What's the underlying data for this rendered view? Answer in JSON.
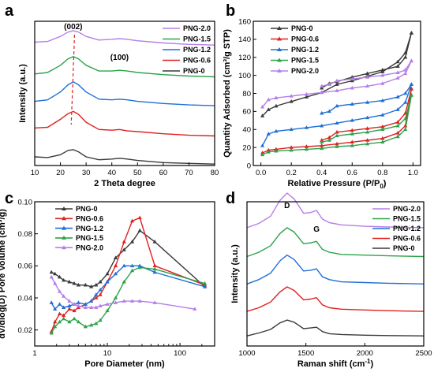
{
  "chart_data": [
    {
      "panel": "a",
      "type": "line",
      "xlabel": "2 Theta degree",
      "ylabel": "Intensity (a.u.)",
      "xlim": [
        10,
        80
      ],
      "xticks": [
        10,
        20,
        30,
        40,
        50,
        60,
        70,
        80
      ],
      "ylim": [
        0,
        10
      ],
      "yticks_shown": false,
      "legend": "top-right",
      "annotations": [
        "(002)",
        "(100)"
      ],
      "series": [
        {
          "name": "PNG-2.0",
          "color": "#b57ee8",
          "offset": 8.2,
          "x": [
            10,
            15,
            20,
            23,
            25,
            27,
            30,
            35,
            40,
            43,
            46,
            50,
            60,
            70,
            80
          ],
          "y": [
            0.35,
            0.4,
            0.75,
            1.05,
            1.15,
            1.05,
            0.75,
            0.5,
            0.55,
            0.6,
            0.55,
            0.45,
            0.3,
            0.2,
            0.15
          ]
        },
        {
          "name": "PNG-1.5",
          "color": "#2ca24a",
          "offset": 6.0,
          "x": [
            10,
            15,
            20,
            23,
            25,
            27,
            30,
            35,
            40,
            43,
            46,
            50,
            60,
            70,
            80
          ],
          "y": [
            0.35,
            0.45,
            0.95,
            1.4,
            1.55,
            1.4,
            0.95,
            0.55,
            0.55,
            0.6,
            0.55,
            0.45,
            0.3,
            0.2,
            0.15
          ]
        },
        {
          "name": "PNG-1.2",
          "color": "#1f6fd6",
          "offset": 4.0,
          "x": [
            10,
            15,
            20,
            23,
            25,
            27,
            30,
            35,
            40,
            43,
            46,
            50,
            60,
            70,
            80
          ],
          "y": [
            0.45,
            0.55,
            1.1,
            1.6,
            1.8,
            1.6,
            1.1,
            0.6,
            0.55,
            0.6,
            0.55,
            0.45,
            0.3,
            0.2,
            0.15
          ]
        },
        {
          "name": "PNG-0.6",
          "color": "#e02020",
          "offset": 1.9,
          "x": [
            10,
            15,
            20,
            23,
            25,
            27,
            30,
            35,
            40,
            43,
            46,
            50,
            60,
            70,
            80
          ],
          "y": [
            0.7,
            0.75,
            1.3,
            1.7,
            1.85,
            1.65,
            1.1,
            0.6,
            0.55,
            0.6,
            0.5,
            0.45,
            0.3,
            0.2,
            0.15
          ]
        },
        {
          "name": "PNG-0",
          "color": "#3a3a3a",
          "offset": 0.0,
          "x": [
            10,
            15,
            20,
            23,
            25,
            27,
            30,
            35,
            40,
            43,
            46,
            50,
            60,
            70,
            80
          ],
          "y": [
            0.6,
            0.55,
            0.75,
            1.05,
            1.1,
            0.95,
            0.6,
            0.4,
            0.45,
            0.5,
            0.45,
            0.35,
            0.2,
            0.15,
            0.1
          ]
        }
      ]
    },
    {
      "panel": "b",
      "type": "line",
      "xlabel": "Relative Pressure (P/P",
      "xlabel_sub": "0",
      "xlabel_end": ")",
      "ylabel": "Quantity Adsorbed (cm³/g STP)",
      "xlim": [
        -0.05,
        1.05
      ],
      "xticks": [
        0.0,
        0.2,
        0.4,
        0.6,
        0.8,
        1.0
      ],
      "ylim": [
        0,
        160
      ],
      "yticks": [
        0,
        20,
        40,
        60,
        80,
        100,
        120,
        140,
        160
      ],
      "legend": "top-left",
      "series": [
        {
          "name": "PNG-0",
          "color": "#3a3a3a",
          "adsorption_x": [
            0.01,
            0.05,
            0.1,
            0.2,
            0.3,
            0.4,
            0.5,
            0.6,
            0.7,
            0.8,
            0.9,
            0.95,
            0.99
          ],
          "adsorption_y": [
            55,
            62,
            66,
            71,
            76,
            81,
            90,
            94,
            99,
            104,
            115,
            125,
            147
          ],
          "desorption_x": [
            0.99,
            0.95,
            0.9,
            0.8,
            0.7,
            0.6,
            0.5,
            0.45,
            0.4
          ],
          "desorption_y": [
            147,
            120,
            110,
            106,
            102,
            98,
            93,
            91,
            86
          ]
        },
        {
          "name": "PNG-0.6",
          "color": "#e02020",
          "adsorption_x": [
            0.01,
            0.05,
            0.1,
            0.2,
            0.3,
            0.4,
            0.5,
            0.6,
            0.7,
            0.8,
            0.9,
            0.95,
            0.99
          ],
          "adsorption_y": [
            14,
            17,
            18,
            20,
            21,
            22,
            24,
            26,
            28,
            30,
            36,
            44,
            85
          ],
          "desorption_x": [
            0.99,
            0.95,
            0.9,
            0.8,
            0.7,
            0.6,
            0.5,
            0.45,
            0.4
          ],
          "desorption_y": [
            85,
            58,
            48,
            43,
            41,
            39,
            37,
            31,
            28
          ]
        },
        {
          "name": "PNG-1.2",
          "color": "#1f6fd6",
          "adsorption_x": [
            0.01,
            0.05,
            0.1,
            0.2,
            0.3,
            0.4,
            0.5,
            0.6,
            0.7,
            0.8,
            0.9,
            0.95,
            0.99
          ],
          "adsorption_y": [
            22,
            35,
            38,
            40,
            42,
            44,
            47,
            50,
            53,
            56,
            62,
            70,
            90
          ],
          "desorption_x": [
            0.99,
            0.95,
            0.9,
            0.8,
            0.7,
            0.6,
            0.5,
            0.45,
            0.4
          ],
          "desorption_y": [
            90,
            80,
            76,
            72,
            70,
            68,
            66,
            60,
            58
          ]
        },
        {
          "name": "PNG-1.5",
          "color": "#2ca24a",
          "adsorption_x": [
            0.01,
            0.05,
            0.1,
            0.2,
            0.3,
            0.4,
            0.5,
            0.6,
            0.7,
            0.8,
            0.9,
            0.95,
            0.99
          ],
          "adsorption_y": [
            12,
            15,
            16,
            17,
            18,
            19,
            21,
            22,
            24,
            26,
            32,
            40,
            78
          ],
          "desorption_x": [
            0.99,
            0.95,
            0.9,
            0.8,
            0.7,
            0.6,
            0.5,
            0.45,
            0.4
          ],
          "desorption_y": [
            78,
            52,
            44,
            40,
            37,
            35,
            33,
            28,
            26
          ]
        },
        {
          "name": "PNG-2.0",
          "color": "#b57ee8",
          "adsorption_x": [
            0.01,
            0.05,
            0.1,
            0.2,
            0.3,
            0.4,
            0.5,
            0.6,
            0.7,
            0.8,
            0.9,
            0.95,
            0.99
          ],
          "adsorption_y": [
            65,
            73,
            75,
            77,
            79,
            81,
            83,
            86,
            88,
            91,
            97,
            102,
            116
          ],
          "desorption_x": [
            0.99,
            0.95,
            0.9,
            0.8,
            0.7,
            0.6,
            0.5,
            0.45,
            0.4
          ],
          "desorption_y": [
            116,
            106,
            103,
            100,
            98,
            96,
            94,
            90,
            88
          ]
        }
      ]
    },
    {
      "panel": "c",
      "type": "line",
      "xlabel": "Pore Diameter (nm)",
      "ylabel": "dV/dlog(D) Pore Volume (cm³/g)",
      "xscale": "log",
      "xlim": [
        1,
        300
      ],
      "xticks": [
        1,
        10,
        100
      ],
      "ylim": [
        0.01,
        0.1
      ],
      "yticks": [
        0.02,
        0.04,
        0.06,
        0.08,
        0.1
      ],
      "legend": "top-left",
      "series": [
        {
          "name": "PNG-0",
          "color": "#3a3a3a",
          "x": [
            1.7,
            1.9,
            2.2,
            2.5,
            3,
            3.5,
            4,
            5,
            6,
            7,
            8,
            10,
            13,
            17,
            22,
            28,
            45,
            220
          ],
          "y": [
            0.056,
            0.055,
            0.053,
            0.051,
            0.05,
            0.049,
            0.048,
            0.048,
            0.047,
            0.048,
            0.05,
            0.055,
            0.065,
            0.07,
            0.075,
            0.082,
            0.075,
            0.047
          ]
        },
        {
          "name": "PNG-0.6",
          "color": "#e02020",
          "x": [
            1.7,
            1.9,
            2.2,
            2.5,
            3,
            3.5,
            4,
            5,
            6,
            7,
            8,
            10,
            13,
            17,
            22,
            28,
            45,
            220
          ],
          "y": [
            0.019,
            0.025,
            0.03,
            0.029,
            0.033,
            0.032,
            0.034,
            0.036,
            0.038,
            0.04,
            0.042,
            0.05,
            0.06,
            0.075,
            0.088,
            0.09,
            0.06,
            0.048
          ]
        },
        {
          "name": "PNG-1.2",
          "color": "#1f6fd6",
          "x": [
            1.7,
            1.9,
            2.2,
            2.5,
            3,
            3.5,
            4,
            5,
            6,
            7,
            8,
            10,
            13,
            17,
            22,
            28,
            45,
            220
          ],
          "y": [
            0.037,
            0.033,
            0.036,
            0.034,
            0.035,
            0.036,
            0.037,
            0.036,
            0.038,
            0.042,
            0.045,
            0.05,
            0.055,
            0.06,
            0.06,
            0.06,
            0.056,
            0.047
          ]
        },
        {
          "name": "PNG-1.5",
          "color": "#2ca24a",
          "x": [
            1.7,
            1.9,
            2.2,
            2.5,
            3,
            3.5,
            4,
            5,
            6,
            7,
            8,
            10,
            13,
            17,
            22,
            28,
            45,
            220
          ],
          "y": [
            0.018,
            0.022,
            0.025,
            0.027,
            0.025,
            0.027,
            0.025,
            0.022,
            0.023,
            0.024,
            0.026,
            0.032,
            0.04,
            0.05,
            0.057,
            0.059,
            0.058,
            0.049
          ]
        },
        {
          "name": "PNG-2.0",
          "color": "#b57ee8",
          "x": [
            1.7,
            1.9,
            2.2,
            2.5,
            3,
            3.5,
            4,
            5,
            6,
            7,
            8,
            10,
            13,
            17,
            22,
            28,
            45,
            160
          ],
          "y": [
            0.053,
            0.049,
            0.044,
            0.041,
            0.038,
            0.036,
            0.035,
            0.034,
            0.034,
            0.034,
            0.035,
            0.036,
            0.037,
            0.038,
            0.038,
            0.038,
            0.037,
            0.033
          ]
        }
      ]
    },
    {
      "panel": "d",
      "type": "line",
      "xlabel": "Raman shift (cm",
      "xlabel_sup": "-1",
      "xlabel_end": ")",
      "ylabel": "Intensity (a.u.)",
      "xlim": [
        1000,
        2500
      ],
      "xticks": [
        1000,
        1500,
        2000,
        2500
      ],
      "ylim": [
        0,
        10
      ],
      "yticks_shown": false,
      "legend": "top-right",
      "annotations": [
        "D",
        "G"
      ],
      "series": [
        {
          "name": "PNG-2.0",
          "color": "#b57ee8",
          "offset": 8.2,
          "x": [
            1000,
            1100,
            1200,
            1280,
            1340,
            1400,
            1480,
            1540,
            1590,
            1640,
            1700,
            1800,
            2000,
            2200,
            2500
          ],
          "y": [
            0.0,
            0.3,
            0.8,
            1.9,
            2.4,
            2.0,
            1.0,
            1.05,
            1.2,
            0.6,
            0.35,
            0.2,
            0.1,
            0.05,
            0.0
          ]
        },
        {
          "name": "PNG-1.5",
          "color": "#2ca24a",
          "offset": 6.2,
          "x": [
            1000,
            1100,
            1200,
            1280,
            1340,
            1400,
            1480,
            1540,
            1590,
            1640,
            1700,
            1800,
            2000,
            2200,
            2500
          ],
          "y": [
            0.0,
            0.3,
            0.75,
            1.6,
            2.0,
            1.7,
            0.9,
            0.95,
            1.05,
            0.5,
            0.3,
            0.15,
            0.1,
            0.05,
            0.0
          ]
        },
        {
          "name": "PNG-1.2",
          "color": "#1f6fd6",
          "offset": 4.3,
          "x": [
            1000,
            1100,
            1200,
            1280,
            1340,
            1400,
            1480,
            1540,
            1590,
            1640,
            1700,
            1800,
            2000,
            2200,
            2500
          ],
          "y": [
            0.0,
            0.3,
            0.75,
            1.6,
            2.0,
            1.7,
            0.9,
            0.95,
            1.05,
            0.5,
            0.3,
            0.15,
            0.1,
            0.05,
            0.0
          ]
        },
        {
          "name": "PNG-0.6",
          "color": "#e02020",
          "offset": 2.4,
          "x": [
            1000,
            1100,
            1200,
            1280,
            1340,
            1400,
            1480,
            1540,
            1590,
            1640,
            1700,
            1800,
            2000,
            2200,
            2500
          ],
          "y": [
            0.0,
            0.25,
            0.65,
            1.35,
            1.7,
            1.45,
            0.8,
            0.85,
            0.95,
            0.45,
            0.25,
            0.15,
            0.1,
            0.05,
            0.0
          ]
        },
        {
          "name": "PNG-0",
          "color": "#3a3a3a",
          "offset": 0.7,
          "x": [
            1000,
            1100,
            1200,
            1280,
            1340,
            1400,
            1480,
            1540,
            1590,
            1640,
            1700,
            1800,
            2000,
            2200,
            2500
          ],
          "y": [
            0.0,
            0.2,
            0.45,
            0.9,
            1.1,
            0.95,
            0.5,
            0.55,
            0.6,
            0.3,
            0.15,
            0.1,
            0.05,
            0.02,
            0.0
          ]
        }
      ]
    }
  ]
}
